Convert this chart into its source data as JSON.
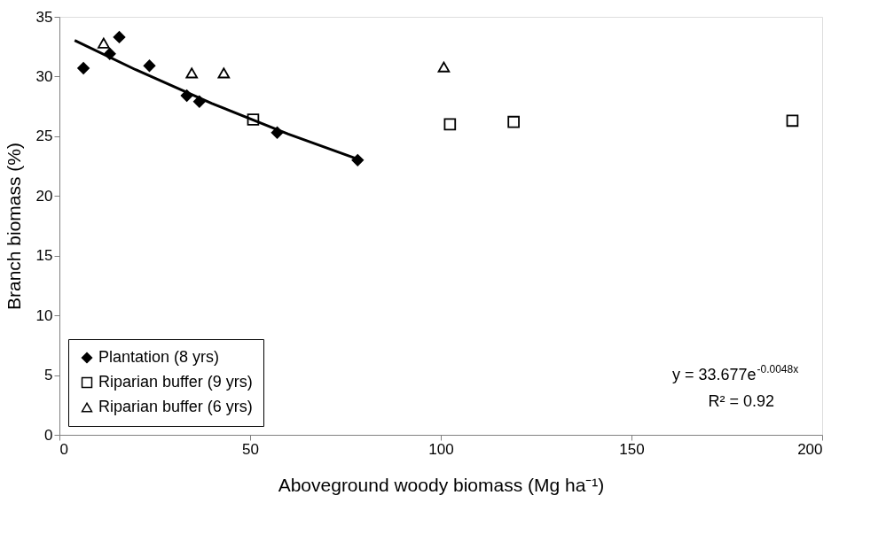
{
  "chart_data": {
    "type": "scatter",
    "xlabel": "Aboveground woody biomass (Mg ha⁻¹)",
    "ylabel": "Branch biomass  (%)",
    "xlim": [
      0,
      200
    ],
    "xticks": [
      0,
      50,
      100,
      150,
      200
    ],
    "ylim": [
      0,
      35
    ],
    "yticks": [
      0,
      5,
      10,
      15,
      20,
      25,
      30,
      35
    ],
    "grid": false,
    "legend": "bottom left",
    "annotations": [
      "y = 33.677e$^{-0.0048x}$",
      "R² = 0.92"
    ],
    "series": [
      {
        "name": "Plantation (8 yrs)",
        "color": "#000000",
        "marker": "diamond",
        "x": [
          6.3,
          13.2,
          15.7,
          23.6,
          33.4,
          36.7,
          57.1,
          78.2
        ],
        "values": [
          30.7,
          31.9,
          33.3,
          30.9,
          28.4,
          27.9,
          25.3,
          23.0
        ]
      },
      {
        "name": "Riparian buffer (9 yrs)",
        "color": "#000000",
        "marker": "square",
        "x": [
          50.8,
          102.4,
          119.1,
          192.2
        ],
        "values": [
          26.4,
          26.0,
          26.2,
          26.3
        ]
      },
      {
        "name": "Riparian buffer (6 yrs)",
        "color": "#000000",
        "marker": "triangle",
        "x": [
          11.6,
          34.7,
          43.1,
          100.8
        ],
        "values": [
          32.8,
          30.3,
          30.3,
          30.8
        ]
      },
      {
        "type": "line",
        "color": "#000000",
        "marker": "none",
        "line_style": "solid",
        "x": [
          4,
          20,
          40,
          60,
          79
        ],
        "values": [
          33.03,
          30.57,
          27.75,
          25.19,
          23.0
        ]
      }
    ]
  }
}
